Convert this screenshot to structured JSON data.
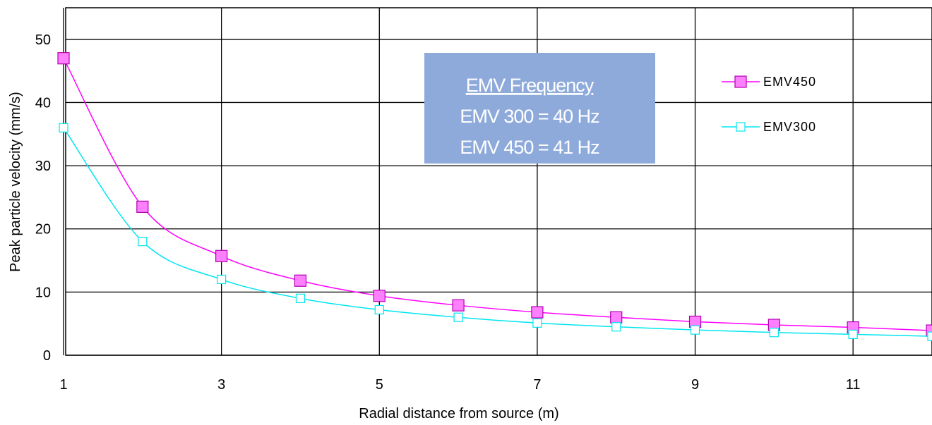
{
  "chart_data": {
    "type": "line",
    "xlabel": "Radial distance from source (m)",
    "ylabel": "Peak particle velocity (mm/s)",
    "xlim": [
      1,
      12
    ],
    "ylim": [
      0,
      55
    ],
    "x_ticks": [
      1,
      3,
      5,
      7,
      9,
      11
    ],
    "y_ticks": [
      0,
      10,
      20,
      30,
      40,
      50
    ],
    "grid": true,
    "legend_position": "right",
    "x": [
      1,
      2,
      3,
      4,
      5,
      6,
      7,
      8,
      9,
      10,
      11,
      12
    ],
    "series": [
      {
        "name": "EMV450",
        "color": "#ff00ff",
        "fill": "#ff80ff",
        "marker": "filled-square",
        "values": [
          47,
          23.5,
          15.7,
          11.8,
          9.4,
          7.9,
          6.8,
          6.0,
          5.3,
          4.8,
          4.4,
          3.9
        ]
      },
      {
        "name": "EMV300",
        "color": "#00e5f0",
        "fill": "#ffffff",
        "marker": "open-square",
        "values": [
          36,
          18,
          12,
          9,
          7.2,
          6.0,
          5.1,
          4.5,
          4.0,
          3.6,
          3.3,
          3.0
        ]
      }
    ],
    "annotation": {
      "heading": "EMV Frequency",
      "lines": [
        "EMV 300 = 40 Hz",
        "EMV 450 = 41 Hz"
      ],
      "background": "#8eaadb"
    }
  }
}
